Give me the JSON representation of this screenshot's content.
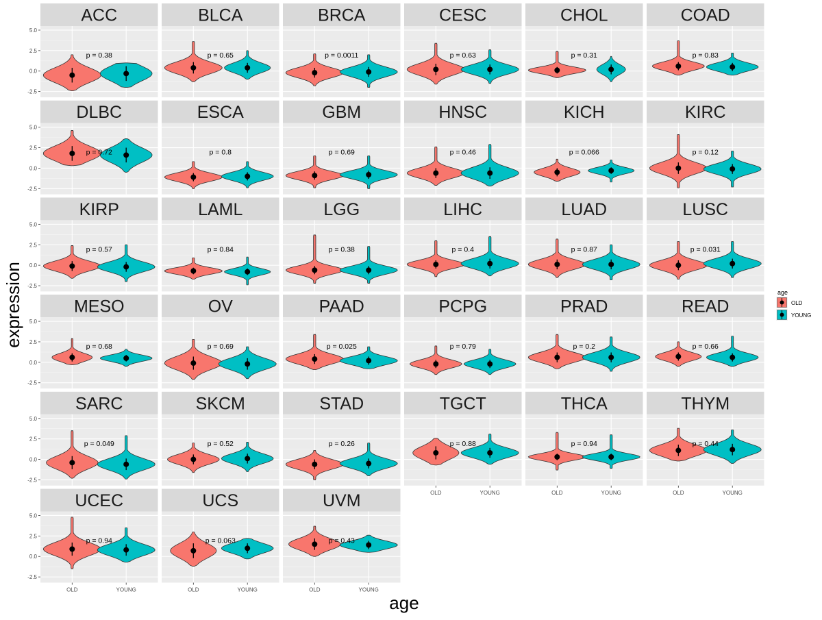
{
  "chart_data": {
    "type": "violin",
    "xlabel": "age",
    "ylabel": "expression",
    "categories": [
      "OLD",
      "YOUNG"
    ],
    "ylim": [
      -3.2,
      5.5
    ],
    "yticks": [
      -2.5,
      0.0,
      2.5,
      5.0
    ],
    "ytick_labels": [
      "-2.5",
      "0.0",
      "2.5",
      "5.0"
    ],
    "legend": {
      "title": "age",
      "position": "right",
      "entries": [
        {
          "label": "OLD",
          "color": "#F8766D"
        },
        {
          "label": "YOUNG",
          "color": "#00BFC4"
        }
      ]
    },
    "colors": {
      "OLD": "#F8766D",
      "YOUNG": "#00BFC4",
      "panel_bg": "#EBEBEB",
      "strip_bg": "#D9D9D9",
      "grid": "#FFFFFF"
    },
    "panels": [
      {
        "name": "ACC",
        "p": "p = 0.38",
        "old": {
          "min": -2.4,
          "max": 2.0,
          "mean": -0.5,
          "sd": 0.9,
          "width": 1.0
        },
        "young": {
          "min": -2.0,
          "max": 1.0,
          "mean": -0.3,
          "sd": 0.9,
          "width": 0.9
        }
      },
      {
        "name": "BLCA",
        "p": "p = 0.65",
        "old": {
          "min": -1.3,
          "max": 3.6,
          "mean": 0.4,
          "sd": 0.7,
          "width": 1.0
        },
        "young": {
          "min": -1.0,
          "max": 2.5,
          "mean": 0.4,
          "sd": 0.6,
          "width": 0.8
        }
      },
      {
        "name": "BRCA",
        "p": "p = 0.0011",
        "old": {
          "min": -1.8,
          "max": 2.1,
          "mean": -0.2,
          "sd": 0.6,
          "width": 1.0
        },
        "young": {
          "min": -2.0,
          "max": 2.0,
          "mean": -0.1,
          "sd": 0.6,
          "width": 1.0
        }
      },
      {
        "name": "CESC",
        "p": "p = 0.63",
        "old": {
          "min": -1.6,
          "max": 3.4,
          "mean": 0.2,
          "sd": 0.7,
          "width": 1.0
        },
        "young": {
          "min": -1.5,
          "max": 2.6,
          "mean": 0.2,
          "sd": 0.6,
          "width": 1.0
        }
      },
      {
        "name": "CHOL",
        "p": "p = 0.31",
        "old": {
          "min": -0.8,
          "max": 2.4,
          "mean": 0.1,
          "sd": 0.4,
          "width": 1.0
        },
        "young": {
          "min": -1.3,
          "max": 1.8,
          "mean": 0.2,
          "sd": 0.6,
          "width": 0.5
        }
      },
      {
        "name": "COAD",
        "p": "p = 0.83",
        "old": {
          "min": -0.5,
          "max": 3.7,
          "mean": 0.6,
          "sd": 0.5,
          "width": 0.9
        },
        "young": {
          "min": -0.5,
          "max": 2.2,
          "mean": 0.5,
          "sd": 0.5,
          "width": 0.9
        }
      },
      {
        "name": "DLBC",
        "p": "p = 0.72",
        "old": {
          "min": 0.3,
          "max": 4.6,
          "mean": 1.8,
          "sd": 0.9,
          "width": 1.0
        },
        "young": {
          "min": -0.5,
          "max": 3.6,
          "mean": 1.6,
          "sd": 0.9,
          "width": 0.9
        }
      },
      {
        "name": "ESCA",
        "p": "p = 0.8",
        "old": {
          "min": -2.5,
          "max": 0.8,
          "mean": -1.1,
          "sd": 0.5,
          "width": 1.0
        },
        "young": {
          "min": -2.4,
          "max": 0.8,
          "mean": -1.0,
          "sd": 0.5,
          "width": 0.9
        }
      },
      {
        "name": "GBM",
        "p": "p = 0.69",
        "old": {
          "min": -2.4,
          "max": 1.5,
          "mean": -0.9,
          "sd": 0.5,
          "width": 1.0
        },
        "young": {
          "min": -2.5,
          "max": 1.5,
          "mean": -0.8,
          "sd": 0.5,
          "width": 1.0
        }
      },
      {
        "name": "HNSC",
        "p": "p = 0.46",
        "old": {
          "min": -2.1,
          "max": 2.6,
          "mean": -0.6,
          "sd": 0.6,
          "width": 1.0
        },
        "young": {
          "min": -2.2,
          "max": 2.9,
          "mean": -0.6,
          "sd": 0.7,
          "width": 1.0
        }
      },
      {
        "name": "KICH",
        "p": "p = 0.066",
        "old": {
          "min": -1.6,
          "max": 1.1,
          "mean": -0.5,
          "sd": 0.5,
          "width": 0.8
        },
        "young": {
          "min": -1.7,
          "max": 1.0,
          "mean": -0.3,
          "sd": 0.4,
          "width": 0.8
        }
      },
      {
        "name": "KIRC",
        "p": "p = 0.12",
        "old": {
          "min": -2.4,
          "max": 4.1,
          "mean": 0.0,
          "sd": 0.7,
          "width": 1.0
        },
        "young": {
          "min": -2.3,
          "max": 2.1,
          "mean": -0.1,
          "sd": 0.6,
          "width": 1.0
        }
      },
      {
        "name": "KIRP",
        "p": "p = 0.57",
        "old": {
          "min": -1.6,
          "max": 2.4,
          "mean": -0.1,
          "sd": 0.6,
          "width": 1.0
        },
        "young": {
          "min": -2.0,
          "max": 2.5,
          "mean": -0.2,
          "sd": 0.6,
          "width": 1.0
        }
      },
      {
        "name": "LAML",
        "p": "p = 0.84",
        "old": {
          "min": -1.7,
          "max": 0.9,
          "mean": -0.7,
          "sd": 0.4,
          "width": 1.0
        },
        "young": {
          "min": -2.4,
          "max": 1.0,
          "mean": -0.8,
          "sd": 0.4,
          "width": 0.8
        }
      },
      {
        "name": "LGG",
        "p": "p = 0.38",
        "old": {
          "min": -2.2,
          "max": 3.7,
          "mean": -0.6,
          "sd": 0.5,
          "width": 1.0
        },
        "young": {
          "min": -2.2,
          "max": 2.3,
          "mean": -0.6,
          "sd": 0.5,
          "width": 1.0
        }
      },
      {
        "name": "LIHC",
        "p": "p = 0.4",
        "old": {
          "min": -1.4,
          "max": 3.0,
          "mean": 0.1,
          "sd": 0.5,
          "width": 1.0
        },
        "young": {
          "min": -1.3,
          "max": 3.5,
          "mean": 0.2,
          "sd": 0.6,
          "width": 1.0
        }
      },
      {
        "name": "LUAD",
        "p": "p = 0.87",
        "old": {
          "min": -1.5,
          "max": 3.2,
          "mean": 0.1,
          "sd": 0.6,
          "width": 1.0
        },
        "young": {
          "min": -1.8,
          "max": 2.5,
          "mean": 0.1,
          "sd": 0.6,
          "width": 1.0
        }
      },
      {
        "name": "LUSC",
        "p": "p = 0.031",
        "old": {
          "min": -1.7,
          "max": 2.9,
          "mean": 0.0,
          "sd": 0.6,
          "width": 1.0
        },
        "young": {
          "min": -1.5,
          "max": 2.9,
          "mean": 0.2,
          "sd": 0.6,
          "width": 1.0
        }
      },
      {
        "name": "MESO",
        "p": "p = 0.68",
        "old": {
          "min": -0.3,
          "max": 2.9,
          "mean": 0.6,
          "sd": 0.5,
          "width": 0.7
        },
        "young": {
          "min": -0.5,
          "max": 1.6,
          "mean": 0.5,
          "sd": 0.4,
          "width": 0.9
        }
      },
      {
        "name": "OV",
        "p": "p = 0.69",
        "old": {
          "min": -2.1,
          "max": 2.8,
          "mean": -0.1,
          "sd": 0.8,
          "width": 1.0
        },
        "young": {
          "min": -2.0,
          "max": 1.9,
          "mean": -0.2,
          "sd": 0.7,
          "width": 1.0
        }
      },
      {
        "name": "PAAD",
        "p": "p = 0.025",
        "old": {
          "min": -0.9,
          "max": 3.4,
          "mean": 0.4,
          "sd": 0.6,
          "width": 1.0
        },
        "young": {
          "min": -0.8,
          "max": 1.9,
          "mean": 0.2,
          "sd": 0.5,
          "width": 1.0
        }
      },
      {
        "name": "PCPG",
        "p": "p = 0.79",
        "old": {
          "min": -1.5,
          "max": 2.0,
          "mean": -0.2,
          "sd": 0.5,
          "width": 0.9
        },
        "young": {
          "min": -1.5,
          "max": 1.6,
          "mean": -0.2,
          "sd": 0.5,
          "width": 0.9
        }
      },
      {
        "name": "PRAD",
        "p": "p = 0.2",
        "old": {
          "min": -0.8,
          "max": 3.4,
          "mean": 0.6,
          "sd": 0.6,
          "width": 1.0
        },
        "young": {
          "min": -1.1,
          "max": 3.1,
          "mean": 0.6,
          "sd": 0.6,
          "width": 1.0
        }
      },
      {
        "name": "READ",
        "p": "p = 0.66",
        "old": {
          "min": -0.5,
          "max": 2.5,
          "mean": 0.7,
          "sd": 0.5,
          "width": 0.8
        },
        "young": {
          "min": -0.5,
          "max": 3.2,
          "mean": 0.6,
          "sd": 0.5,
          "width": 0.9
        }
      },
      {
        "name": "SARC",
        "p": "p = 0.049",
        "old": {
          "min": -2.3,
          "max": 3.5,
          "mean": -0.4,
          "sd": 0.8,
          "width": 0.9
        },
        "young": {
          "min": -2.4,
          "max": 2.9,
          "mean": -0.6,
          "sd": 0.7,
          "width": 1.0
        }
      },
      {
        "name": "SKCM",
        "p": "p = 0.52",
        "old": {
          "min": -1.6,
          "max": 2.0,
          "mean": 0.0,
          "sd": 0.6,
          "width": 0.9
        },
        "young": {
          "min": -1.5,
          "max": 2.1,
          "mean": 0.1,
          "sd": 0.6,
          "width": 0.9
        }
      },
      {
        "name": "STAD",
        "p": "p = 0.26",
        "old": {
          "min": -2.5,
          "max": 1.1,
          "mean": -0.6,
          "sd": 0.6,
          "width": 1.0
        },
        "young": {
          "min": -2.0,
          "max": 2.0,
          "mean": -0.5,
          "sd": 0.6,
          "width": 1.0
        }
      },
      {
        "name": "TGCT",
        "p": "p = 0.88",
        "old": {
          "min": -0.7,
          "max": 2.6,
          "mean": 0.8,
          "sd": 0.8,
          "width": 0.8
        },
        "young": {
          "min": -0.6,
          "max": 3.1,
          "mean": 0.8,
          "sd": 0.6,
          "width": 1.0
        }
      },
      {
        "name": "THCA",
        "p": "p = 0.94",
        "old": {
          "min": -1.3,
          "max": 3.3,
          "mean": 0.3,
          "sd": 0.4,
          "width": 1.0
        },
        "young": {
          "min": -1.1,
          "max": 3.0,
          "mean": 0.3,
          "sd": 0.4,
          "width": 1.0
        }
      },
      {
        "name": "THYM",
        "p": "p = 0.44",
        "old": {
          "min": -0.2,
          "max": 3.8,
          "mean": 1.1,
          "sd": 0.7,
          "width": 1.0
        },
        "young": {
          "min": -0.5,
          "max": 3.6,
          "mean": 1.2,
          "sd": 0.7,
          "width": 1.0
        }
      },
      {
        "name": "UCEC",
        "p": "p = 0.94",
        "old": {
          "min": -1.5,
          "max": 4.8,
          "mean": 0.9,
          "sd": 0.8,
          "width": 1.0
        },
        "young": {
          "min": -0.7,
          "max": 3.5,
          "mean": 0.8,
          "sd": 0.7,
          "width": 1.0
        }
      },
      {
        "name": "UCS",
        "p": "p = 0.063",
        "old": {
          "min": -1.2,
          "max": 3.0,
          "mean": 0.7,
          "sd": 0.9,
          "width": 0.8
        },
        "young": {
          "min": -0.3,
          "max": 2.2,
          "mean": 1.0,
          "sd": 0.6,
          "width": 0.9
        }
      },
      {
        "name": "UVM",
        "p": "p = 0.43",
        "old": {
          "min": 0.0,
          "max": 3.7,
          "mean": 1.5,
          "sd": 0.7,
          "width": 0.9
        },
        "young": {
          "min": 0.5,
          "max": 2.6,
          "mean": 1.4,
          "sd": 0.5,
          "width": 1.0
        }
      }
    ]
  }
}
